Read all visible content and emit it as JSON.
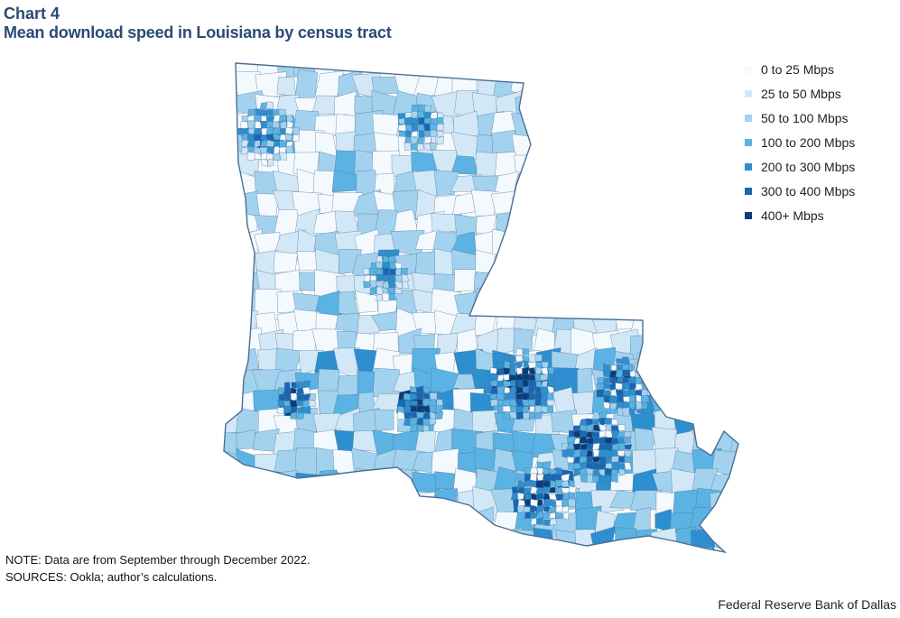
{
  "header": {
    "chart_label": "Chart 4",
    "title": "Mean download speed in Louisiana by census tract"
  },
  "legend": {
    "items": [
      {
        "label": "0 to 25 Mbps",
        "color": "#f4f9fe"
      },
      {
        "label": "25 to 50 Mbps",
        "color": "#d2e8f7"
      },
      {
        "label": "50 to 100 Mbps",
        "color": "#a3d2ee"
      },
      {
        "label": "100 to 200 Mbps",
        "color": "#5ab3e2"
      },
      {
        "label": "200 to 300 Mbps",
        "color": "#2d8fcf"
      },
      {
        "label": "300 to 400 Mbps",
        "color": "#1867b2"
      },
      {
        "label": "400+ Mbps",
        "color": "#0a3d7a"
      }
    ]
  },
  "footer": {
    "note": "NOTE: Data are from September through December 2022.",
    "sources": "SOURCES: Ookla; author’s calculations.",
    "credit": "Federal Reserve Bank of Dallas"
  },
  "colors": {
    "title": "#2b4a75",
    "border": "#4a6f95"
  }
}
